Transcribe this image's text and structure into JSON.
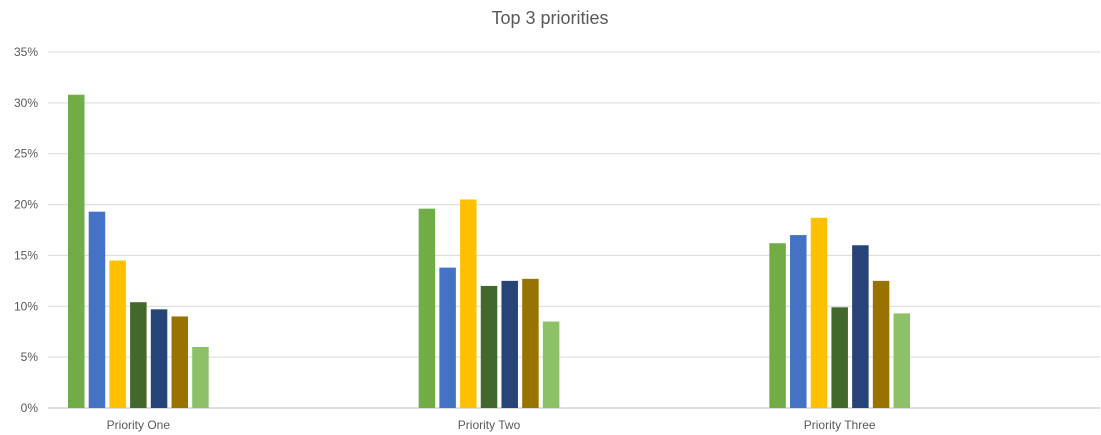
{
  "chart_data": {
    "type": "bar",
    "title": "Top 3 priorities",
    "xlabel": "",
    "ylabel": "",
    "categories": [
      "Priority One",
      "Priority Two",
      "Priority Three"
    ],
    "y_ticks": [
      "0%",
      "5%",
      "10%",
      "15%",
      "20%",
      "25%",
      "30%",
      "35%"
    ],
    "ylim": [
      0,
      35
    ],
    "grid": true,
    "legend": "none",
    "series": [
      {
        "color": "#70AD47",
        "values": [
          30.8,
          19.6,
          16.2
        ]
      },
      {
        "color": "#4472C4",
        "values": [
          19.3,
          13.8,
          17.0
        ]
      },
      {
        "color": "#FFC000",
        "values": [
          14.5,
          20.5,
          18.7
        ]
      },
      {
        "color": "#43682B",
        "values": [
          10.4,
          12.0,
          9.9
        ]
      },
      {
        "color": "#264478",
        "values": [
          9.7,
          12.5,
          16.0
        ]
      },
      {
        "color": "#997300",
        "values": [
          9.0,
          12.7,
          12.5
        ]
      },
      {
        "color": "#8CC168",
        "values": [
          6.0,
          8.5,
          9.3
        ]
      }
    ]
  }
}
